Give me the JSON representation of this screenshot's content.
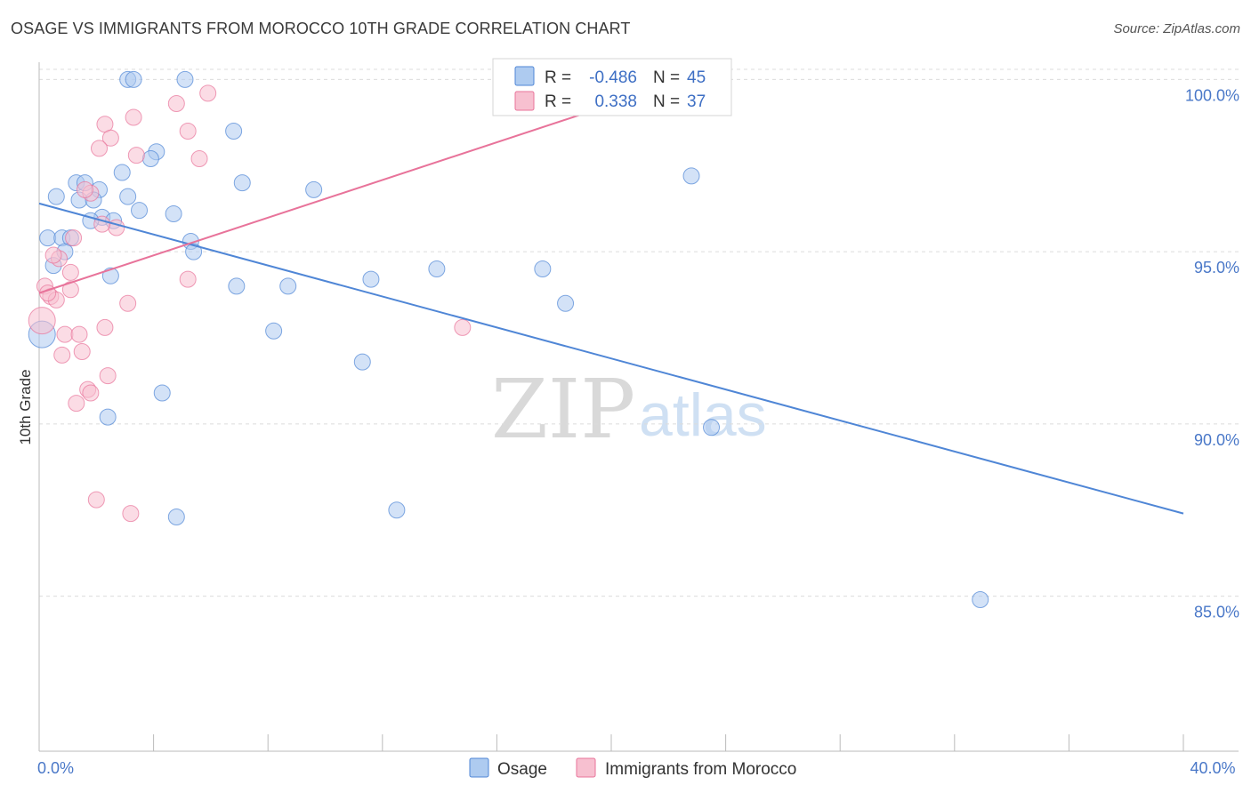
{
  "title": "OSAGE VS IMMIGRANTS FROM MOROCCO 10TH GRADE CORRELATION CHART",
  "source": "Source: ZipAtlas.com",
  "watermark": {
    "zip": "ZIP",
    "atlas": "atlas"
  },
  "stats": [
    {
      "r_label": "R =",
      "r_value": "-0.486",
      "n_label": "N =",
      "n_value": "45",
      "color": "#aecbf0"
    },
    {
      "r_label": "R =",
      "r_value": "0.338",
      "n_label": "N =",
      "n_value": "37",
      "color": "#f7c0d0"
    }
  ],
  "legend": [
    {
      "label": "Osage",
      "color": "#aecbf0"
    },
    {
      "label": "Immigrants from Morocco",
      "color": "#f7c0d0"
    }
  ],
  "chart_data": {
    "type": "scatter",
    "title": "OSAGE VS IMMIGRANTS FROM MOROCCO 10TH GRADE CORRELATION CHART",
    "xlabel": "",
    "ylabel": "10th Grade",
    "xlim": [
      0,
      40
    ],
    "ylim": [
      80.5,
      100.5
    ],
    "x_tick_labels": [
      {
        "value": 0,
        "label": "0.0%"
      },
      {
        "value": 40,
        "label": "40.0%"
      }
    ],
    "y_ticks": [
      {
        "value": 85,
        "label": "85.0%"
      },
      {
        "value": 90,
        "label": "90.0%"
      },
      {
        "value": 95,
        "label": "95.0%"
      },
      {
        "value": 100,
        "label": "100.0%"
      }
    ],
    "series": [
      {
        "name": "Osage",
        "color": "#4f86d6",
        "fill": "#aecbf0",
        "trend": {
          "x0": 0,
          "y0": 96.4,
          "x1": 40,
          "y1": 87.4
        },
        "points": [
          [
            3.1,
            100.0
          ],
          [
            3.3,
            100.0
          ],
          [
            5.1,
            100.0
          ],
          [
            6.8,
            98.5
          ],
          [
            4.1,
            97.9
          ],
          [
            3.9,
            97.7
          ],
          [
            2.9,
            97.3
          ],
          [
            1.3,
            97.0
          ],
          [
            1.6,
            97.0
          ],
          [
            7.1,
            97.0
          ],
          [
            2.1,
            96.8
          ],
          [
            9.6,
            96.8
          ],
          [
            0.6,
            96.6
          ],
          [
            3.1,
            96.6
          ],
          [
            1.4,
            96.5
          ],
          [
            1.9,
            96.5
          ],
          [
            3.5,
            96.2
          ],
          [
            4.7,
            96.1
          ],
          [
            2.2,
            96.0
          ],
          [
            2.6,
            95.9
          ],
          [
            1.8,
            95.9
          ],
          [
            0.3,
            95.4
          ],
          [
            0.8,
            95.4
          ],
          [
            1.1,
            95.4
          ],
          [
            5.3,
            95.3
          ],
          [
            0.9,
            95.0
          ],
          [
            5.4,
            95.0
          ],
          [
            0.5,
            94.6
          ],
          [
            2.5,
            94.3
          ],
          [
            11.6,
            94.2
          ],
          [
            13.9,
            94.5
          ],
          [
            17.6,
            94.5
          ],
          [
            6.9,
            94.0
          ],
          [
            8.7,
            94.0
          ],
          [
            18.4,
            93.5
          ],
          [
            8.2,
            92.7
          ],
          [
            0.1,
            92.6
          ],
          [
            11.3,
            91.8
          ],
          [
            4.3,
            90.9
          ],
          [
            2.4,
            90.2
          ],
          [
            23.5,
            89.9
          ],
          [
            22.8,
            97.2
          ],
          [
            12.5,
            87.5
          ],
          [
            4.8,
            87.3
          ],
          [
            32.9,
            84.9
          ]
        ]
      },
      {
        "name": "Immigrants from Morocco",
        "color": "#e8739a",
        "fill": "#f7c0d0",
        "trend": {
          "x0": 0,
          "y0": 93.8,
          "x1": 22.3,
          "y1": 99.9
        },
        "points": [
          [
            5.9,
            99.6
          ],
          [
            4.8,
            99.3
          ],
          [
            3.3,
            98.9
          ],
          [
            2.3,
            98.7
          ],
          [
            5.2,
            98.5
          ],
          [
            2.5,
            98.3
          ],
          [
            2.1,
            98.0
          ],
          [
            3.4,
            97.8
          ],
          [
            5.6,
            97.7
          ],
          [
            1.8,
            96.7
          ],
          [
            2.7,
            95.7
          ],
          [
            1.2,
            95.4
          ],
          [
            0.7,
            94.8
          ],
          [
            1.1,
            94.4
          ],
          [
            5.2,
            94.2
          ],
          [
            0.2,
            94.0
          ],
          [
            1.1,
            93.9
          ],
          [
            0.4,
            93.7
          ],
          [
            0.6,
            93.6
          ],
          [
            3.1,
            93.5
          ],
          [
            0.1,
            93.0
          ],
          [
            2.3,
            92.8
          ],
          [
            14.8,
            92.8
          ],
          [
            0.9,
            92.6
          ],
          [
            1.4,
            92.6
          ],
          [
            1.5,
            92.1
          ],
          [
            0.8,
            92.0
          ],
          [
            2.4,
            91.4
          ],
          [
            1.7,
            91.0
          ],
          [
            1.8,
            90.9
          ],
          [
            1.3,
            90.6
          ],
          [
            2.0,
            87.8
          ],
          [
            3.2,
            87.4
          ],
          [
            1.6,
            96.8
          ],
          [
            0.5,
            94.9
          ],
          [
            2.2,
            95.8
          ],
          [
            0.3,
            93.8
          ]
        ]
      }
    ]
  }
}
